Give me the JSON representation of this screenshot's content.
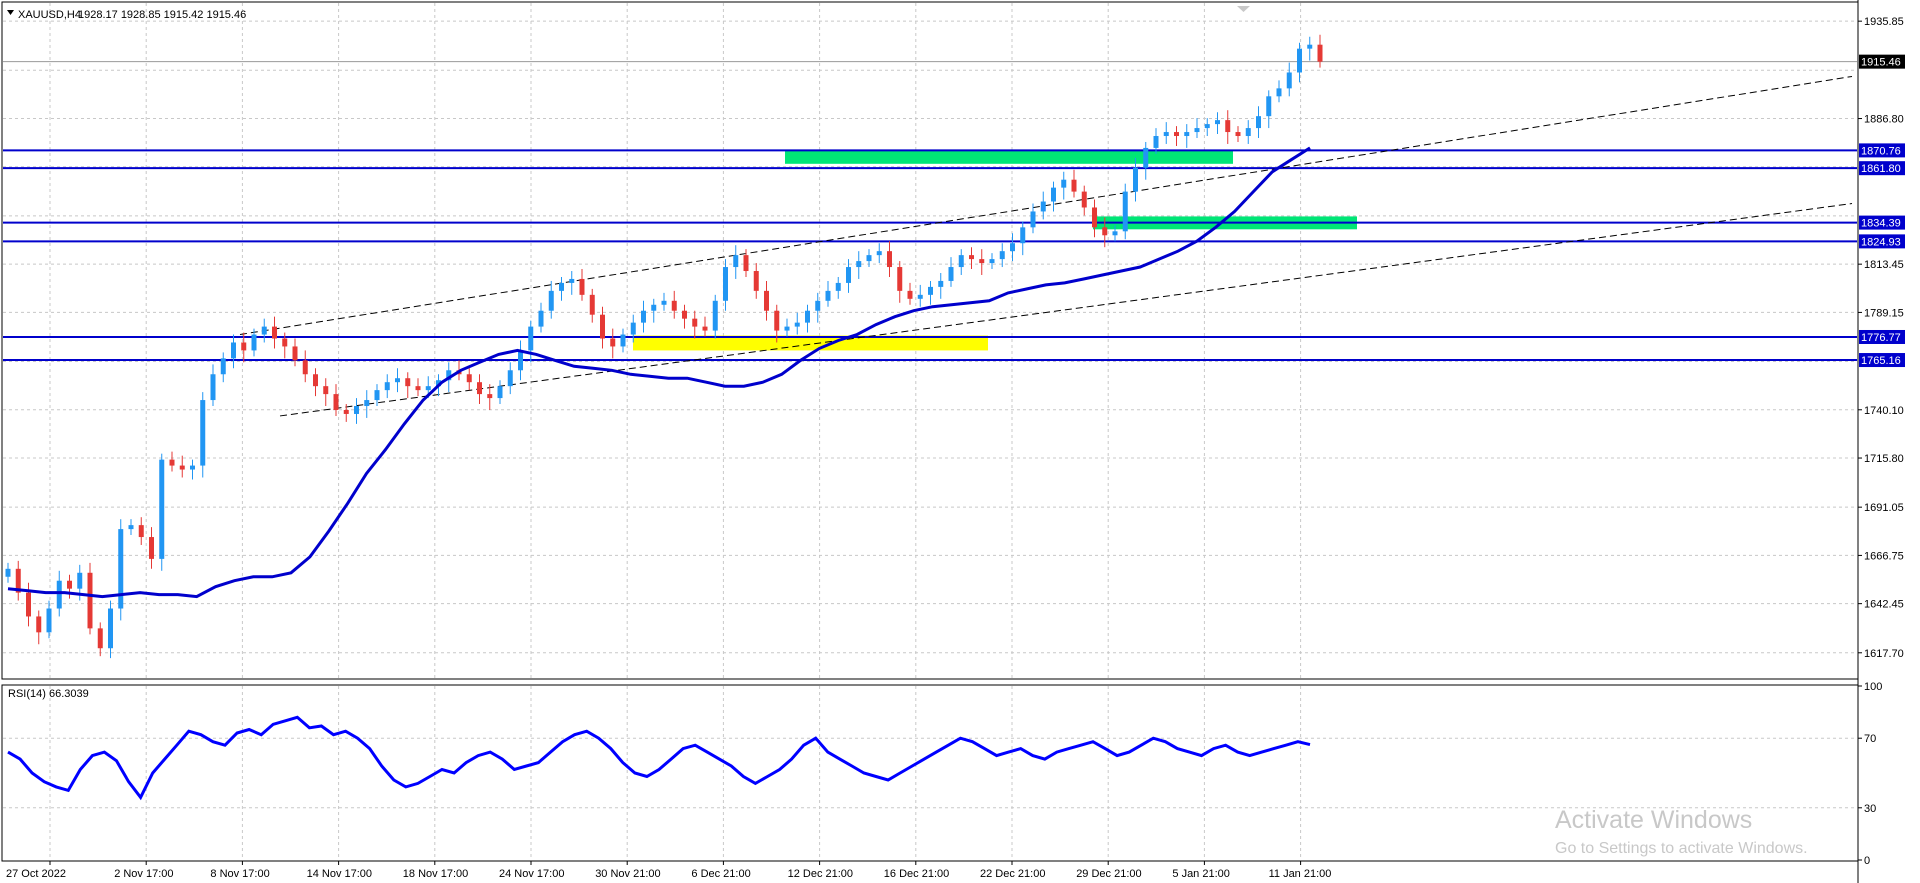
{
  "header": {
    "symbol": "XAUUSD,H4",
    "ohlc": "1928.17 1928.85 1915.42 1915.46"
  },
  "rsi_panel": {
    "label": "RSI(14) 66.3039"
  },
  "watermark": {
    "line1": "Activate Windows",
    "line2": "Go to Settings to activate Windows."
  },
  "colors": {
    "up": "#2196f3",
    "down": "#e53935",
    "ma": "#0000cc",
    "levels": "#0000cc",
    "zone_green": "#00e676",
    "zone_yellow": "#ffff00",
    "grid": "#c8c8c8",
    "rsi": "#0000ff"
  },
  "chart_data": [
    {
      "type": "candlestick",
      "title": "XAUUSD,H4",
      "timeframe": "H4",
      "ohlc_last": {
        "open": 1928.17,
        "high": 1928.85,
        "low": 1915.42,
        "close": 1915.46
      },
      "current_price": 1915.46,
      "ylim": [
        1605,
        1945
      ],
      "y_ticks": [
        1935.85,
        1911.1,
        1886.8,
        1862.55,
        1837.75,
        1813.45,
        1789.15,
        1764.4,
        1740.1,
        1715.8,
        1691.05,
        1666.75,
        1642.45,
        1617.7
      ],
      "x_ticks": [
        "27 Oct 2022",
        "2 Nov 17:00",
        "8 Nov 17:00",
        "14 Nov 17:00",
        "18 Nov 17:00",
        "24 Nov 17:00",
        "30 Nov 21:00",
        "6 Dec 21:00",
        "12 Dec 21:00",
        "16 Dec 21:00",
        "22 Dec 21:00",
        "29 Dec 21:00",
        "5 Jan 21:00",
        "11 Jan 21:00"
      ],
      "close_path": [
        1660,
        1648,
        1636,
        1628,
        1640,
        1654,
        1650,
        1658,
        1630,
        1620,
        1640,
        1680,
        1682,
        1676,
        1665,
        1715,
        1712,
        1710,
        1712,
        1745,
        1758,
        1766,
        1774,
        1770,
        1778,
        1782,
        1776,
        1772,
        1765,
        1758,
        1752,
        1748,
        1740,
        1738,
        1742,
        1745,
        1750,
        1754,
        1756,
        1752,
        1750,
        1752,
        1755,
        1760,
        1758,
        1754,
        1748,
        1746,
        1752,
        1760,
        1770,
        1782,
        1790,
        1800,
        1804,
        1806,
        1798,
        1788,
        1776,
        1772,
        1778,
        1784,
        1790,
        1793,
        1795,
        1790,
        1786,
        1782,
        1780,
        1795,
        1812,
        1818,
        1810,
        1800,
        1790,
        1780,
        1782,
        1784,
        1790,
        1795,
        1800,
        1804,
        1812,
        1815,
        1818,
        1820,
        1812,
        1800,
        1796,
        1798,
        1802,
        1805,
        1812,
        1818,
        1816,
        1814,
        1816,
        1820,
        1824,
        1832,
        1840,
        1845,
        1852,
        1856,
        1850,
        1842,
        1832,
        1828,
        1830,
        1850,
        1862,
        1872,
        1878,
        1880,
        1878,
        1880,
        1882,
        1884,
        1886,
        1880,
        1878,
        1882,
        1888,
        1898,
        1902,
        1910,
        1922,
        1924,
        1915.46
      ],
      "moving_average": {
        "name": "MA",
        "values": [
          1650,
          1649,
          1648,
          1648,
          1647,
          1646,
          1647,
          1648,
          1647,
          1647,
          1646,
          1651,
          1654,
          1656,
          1656,
          1658,
          1666,
          1679,
          1693,
          1708,
          1720,
          1733,
          1745,
          1754,
          1760,
          1764,
          1768,
          1770,
          1768,
          1765,
          1762,
          1761,
          1760,
          1758,
          1757,
          1756,
          1756,
          1754,
          1752,
          1752,
          1754,
          1758,
          1765,
          1771,
          1775,
          1778,
          1783,
          1787,
          1790,
          1792,
          1793,
          1794,
          1795,
          1799,
          1801,
          1803,
          1804,
          1806,
          1808,
          1810,
          1812,
          1816,
          1820,
          1825,
          1832,
          1840,
          1850,
          1860,
          1866,
          1872
        ],
        "x_ticks_span": [
          "27 Oct 2022",
          "11 Jan 21:00"
        ]
      },
      "horizontal_levels": [
        1870.76,
        1861.8,
        1834.39,
        1824.93,
        1776.77,
        1765.16
      ],
      "zones": [
        {
          "color": "green",
          "from": 1831,
          "to": 1837.5
        },
        {
          "color": "green",
          "from": 1864,
          "to": 1871
        },
        {
          "color": "yellow",
          "from": 1770,
          "to": 1777.5
        }
      ],
      "trendlines": [
        {
          "style": "dashed",
          "from": [
            "14 Nov 17:00",
            1778
          ],
          "to": [
            "right edge",
            1908
          ]
        },
        {
          "style": "dashed",
          "from": [
            "9 Nov",
            1737
          ],
          "to": [
            "right edge",
            1844
          ]
        }
      ]
    },
    {
      "type": "line",
      "title": "RSI(14) 66.3039",
      "series": [
        {
          "name": "RSI(14)",
          "values": [
            62,
            58,
            50,
            45,
            42,
            40,
            52,
            60,
            62,
            57,
            45,
            36,
            50,
            58,
            66,
            74,
            72,
            68,
            66,
            73,
            75,
            72,
            78,
            80,
            82,
            76,
            77,
            72,
            74,
            70,
            64,
            54,
            46,
            42,
            44,
            48,
            52,
            50,
            56,
            60,
            62,
            58,
            52,
            54,
            56,
            62,
            68,
            72,
            74,
            70,
            64,
            56,
            50,
            48,
            52,
            58,
            64,
            66,
            62,
            58,
            54,
            48,
            44,
            48,
            52,
            58,
            66,
            70,
            62,
            58,
            54,
            50,
            48,
            46,
            50,
            54,
            58,
            62,
            66,
            70,
            68,
            64,
            60,
            62,
            64,
            60,
            58,
            62,
            64,
            66,
            68,
            64,
            60,
            62,
            66,
            70,
            68,
            64,
            62,
            60,
            64,
            66,
            62,
            60,
            62,
            64,
            66,
            68,
            66.3039
          ]
        }
      ],
      "levels": [
        70,
        30
      ],
      "ylim": [
        0,
        100
      ],
      "y_ticks": [
        100,
        70,
        30,
        0
      ]
    }
  ]
}
